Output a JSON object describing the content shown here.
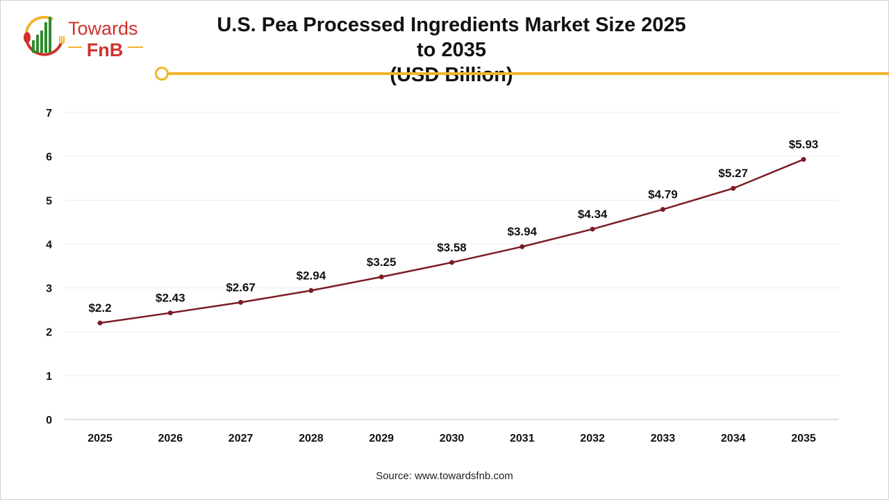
{
  "logo": {
    "line1": "Towards",
    "line2": "FnB",
    "colors": {
      "red": "#d0312d",
      "green": "#2e8b2e",
      "gold": "#f2b42c"
    }
  },
  "header": {
    "title_line1": "U.S. Pea Processed Ingredients Market Size 2025 to 2035",
    "title_line2": "(USD Billion)"
  },
  "source": "Source: www.towardsfnb.com",
  "chart_data": {
    "type": "line",
    "title": "U.S. Pea Processed Ingredients Market Size 2025 to 2035 (USD Billion)",
    "categories": [
      "2025",
      "2026",
      "2027",
      "2028",
      "2029",
      "2030",
      "2031",
      "2032",
      "2033",
      "2034",
      "2035"
    ],
    "values": [
      2.2,
      2.43,
      2.67,
      2.94,
      3.25,
      3.58,
      3.94,
      4.34,
      4.79,
      5.27,
      5.93
    ],
    "data_labels": [
      "$2.2",
      "$2.43",
      "$2.67",
      "$2.94",
      "$3.25",
      "$3.58",
      "$3.94",
      "$4.34",
      "$4.79",
      "$5.27",
      "$5.93"
    ],
    "yticks": [
      "0",
      "1",
      "2",
      "3",
      "4",
      "5",
      "6",
      "7"
    ],
    "ylim": [
      0,
      7
    ],
    "grid": true,
    "legend": "none",
    "line_color": "#7b1c24"
  }
}
